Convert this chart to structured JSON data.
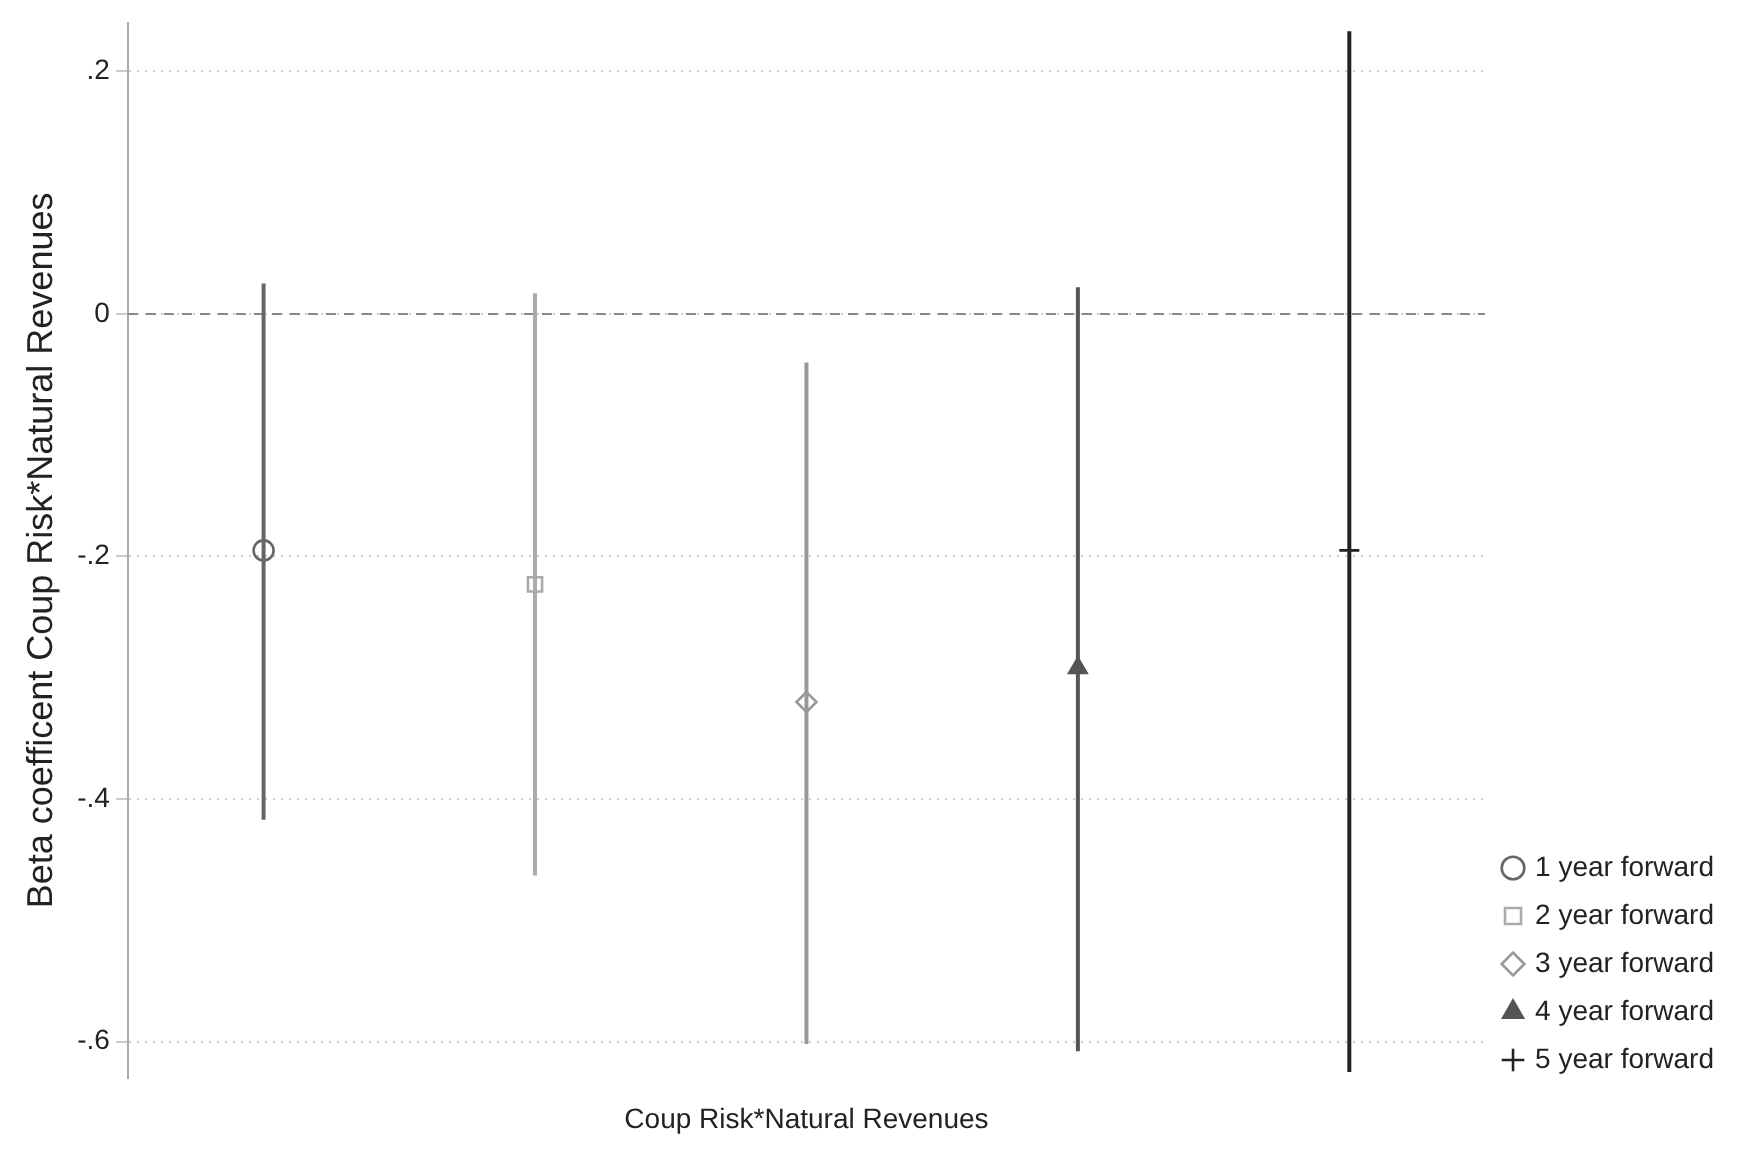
{
  "chart_data": {
    "type": "scatter",
    "ylabel": "Beta coefficent Coup Risk*Natural Revenues",
    "categories": [
      null,
      null,
      null,
      null,
      null
    ],
    "annotations": [
      "Coup Risk*Natural Revenues"
    ],
    "ylim": [
      -0.63,
      0.24
    ],
    "yticks": [
      {
        "value": 0.2,
        "label": ".2"
      },
      {
        "value": 0,
        "label": "0"
      },
      {
        "value": -0.2,
        "label": "-.2"
      },
      {
        "value": -0.4,
        "label": "-.4"
      },
      {
        "value": -0.6,
        "label": "-.6"
      }
    ],
    "grid": "y",
    "legend": "bottom right",
    "tick_labels": "y",
    "ref_lines": [
      {
        "axis": "y",
        "value": 0,
        "color": "#888888",
        "line_style": "dashed"
      }
    ],
    "series": [
      {
        "name": "1 year forward",
        "color": "#666666",
        "marker": "circle",
        "values": [
          -0.195,
          null,
          null,
          null,
          null
        ],
        "errors": [
          [
            -0.417,
            0.025
          ],
          null,
          null,
          null,
          null
        ]
      },
      {
        "name": "2 year forward",
        "color": "#aaaaaa",
        "marker": "square",
        "values": [
          null,
          -0.223,
          null,
          null,
          null
        ],
        "errors": [
          null,
          [
            -0.463,
            0.017
          ],
          null,
          null,
          null
        ]
      },
      {
        "name": "3 year forward",
        "color": "#999999",
        "marker": "diamond",
        "values": [
          null,
          null,
          -0.32,
          null,
          null
        ],
        "errors": [
          null,
          null,
          [
            -0.602,
            -0.04
          ],
          null,
          null
        ]
      },
      {
        "name": "4 year forward",
        "color": "#555555",
        "marker": "triangle",
        "values": [
          null,
          null,
          null,
          -0.292,
          null
        ],
        "errors": [
          null,
          null,
          null,
          [
            -0.608,
            0.022
          ],
          null
        ]
      },
      {
        "name": "5 year forward",
        "color": "#222222",
        "marker": "cross",
        "values": [
          null,
          null,
          null,
          null,
          -0.195
        ],
        "errors": [
          null,
          null,
          null,
          null,
          [
            -0.625,
            0.233
          ]
        ]
      }
    ]
  }
}
